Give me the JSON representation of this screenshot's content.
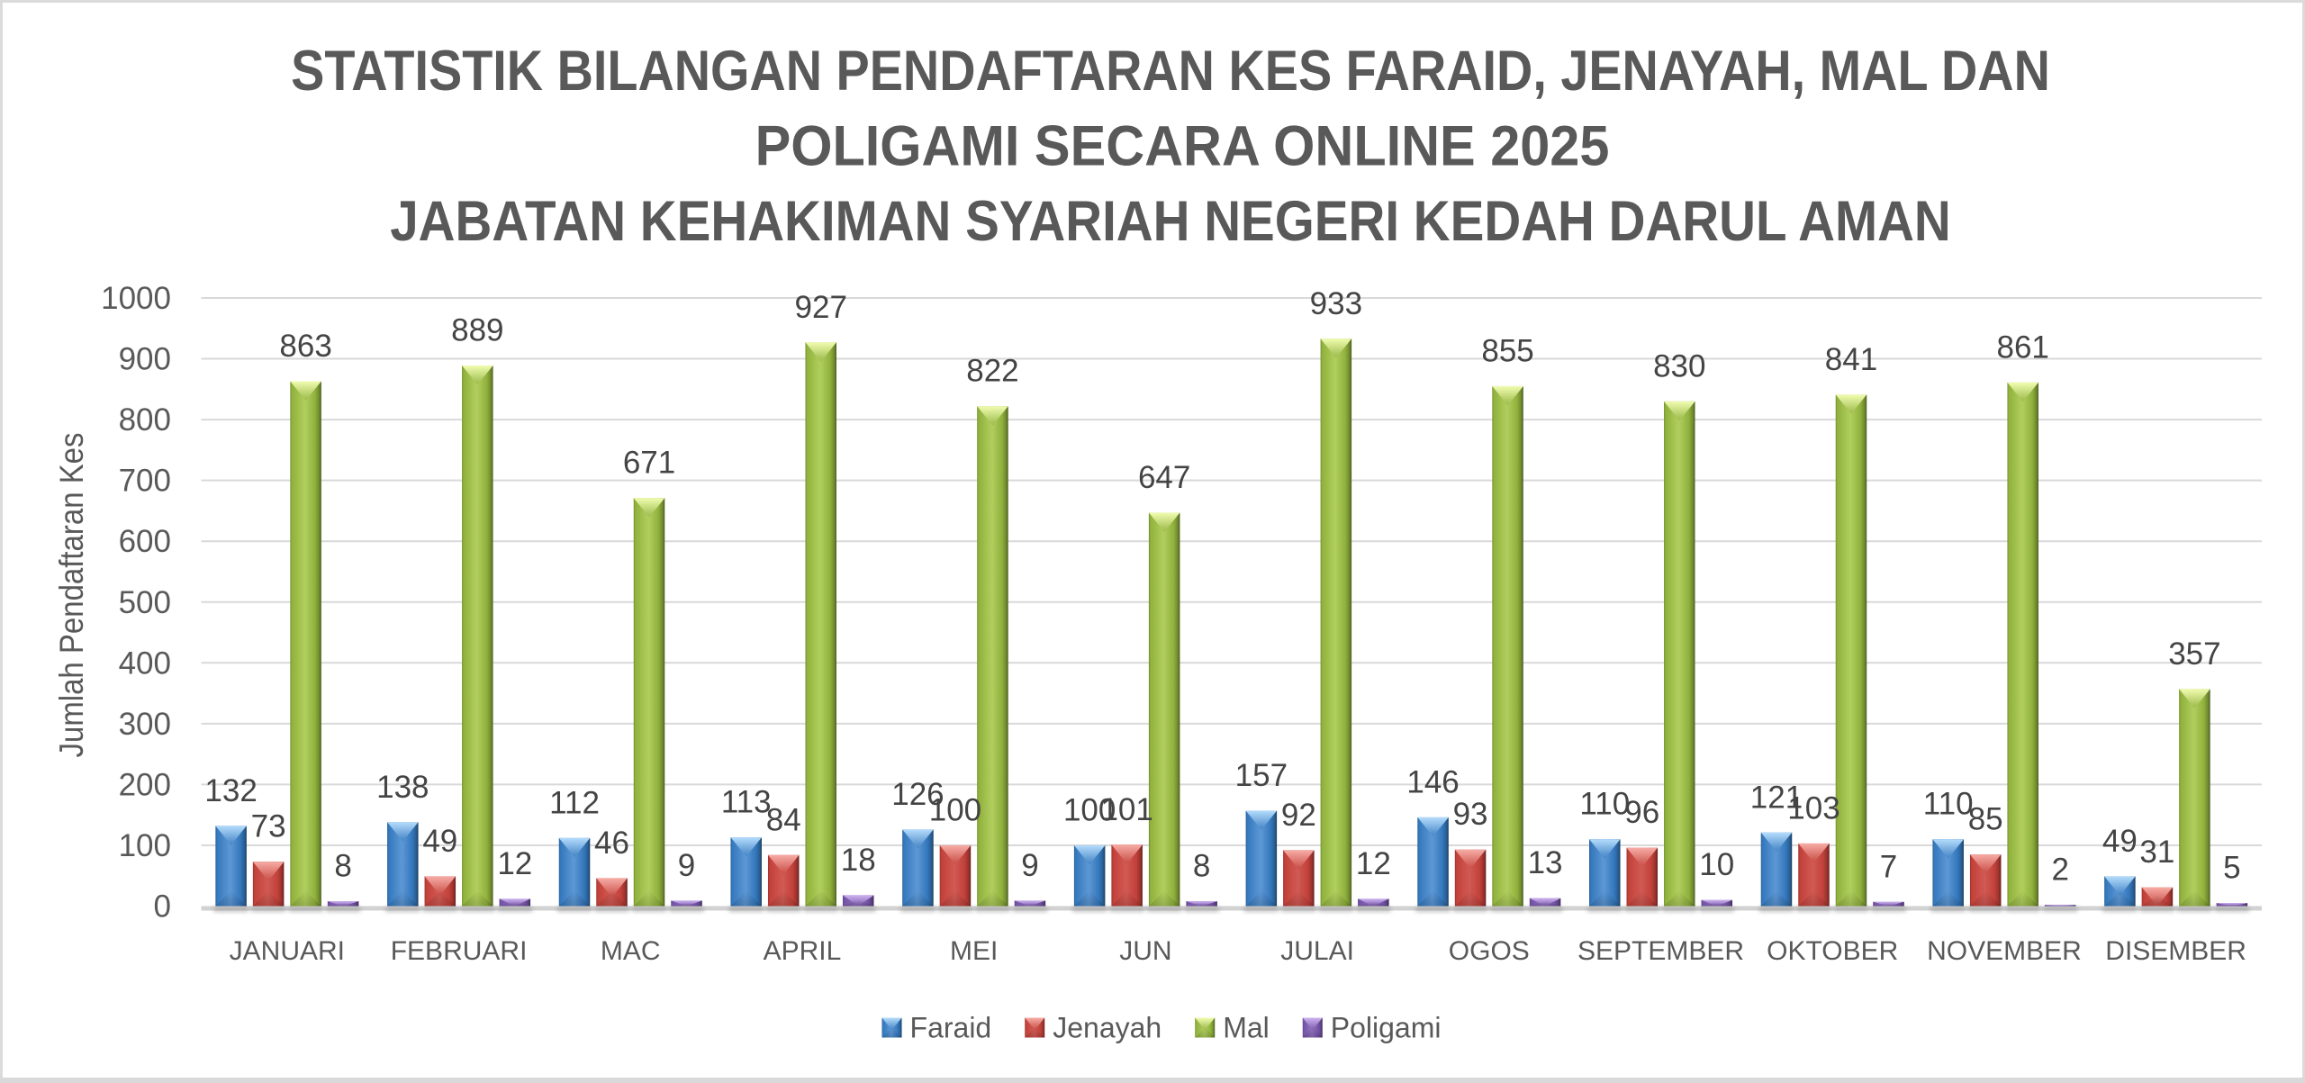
{
  "page": {
    "background": "#FFFFFF",
    "frame_color": "#DBDBDB",
    "bottom_bar_color": "#D9D9D9"
  },
  "chart_data": {
    "type": "bar",
    "title": "STATISTIK BILANGAN PENDAFTARAN KES FARAID, JENAYAH, MAL DAN POLIGAMI SECARA ONLINE 2025 JABATAN KEHAKIMAN SYARIAH NEGERI KEDAH DARUL AMAN",
    "title_lines": [
      "STATISTIK BILANGAN PENDAFTARAN KES FARAID, JENAYAH, MAL DAN",
      "POLIGAMI SECARA ONLINE 2025",
      "JABATAN KEHAKIMAN SYARIAH NEGERI KEDAH DARUL AMAN"
    ],
    "xlabel": "",
    "ylabel": "Jumlah Pendaftaran Kes",
    "ylim": [
      0,
      1000
    ],
    "ytick_step": 100,
    "yticks": [
      0,
      100,
      200,
      300,
      400,
      500,
      600,
      700,
      800,
      900,
      1000
    ],
    "grid": true,
    "legend_position": "bottom",
    "colors": {
      "gridline": "#D9D9D9",
      "axis_baseline": "#D2D2D2",
      "tick_text": "#595959",
      "category_text": "#595959",
      "value_label_text": "#444444",
      "title_text": "#595959",
      "legend_text": "#595959"
    },
    "categories": [
      "JANUARI",
      "FEBRUARI",
      "MAC",
      "APRIL",
      "MEI",
      "JUN",
      "JULAI",
      "OGOS",
      "SEPTEMBER",
      "OKTOBER",
      "NOVEMBER",
      "DISEMBER"
    ],
    "series": [
      {
        "name": "Faraid",
        "color": "#3478BD",
        "highlight": "#B4DCFC",
        "body_light": "#7FB2E8",
        "values": [
          132,
          138,
          112,
          113,
          126,
          100,
          157,
          146,
          110,
          121,
          110,
          49
        ]
      },
      {
        "name": "Jenayah",
        "color": "#C2403A",
        "highlight": "#F6ACA5",
        "body_light": "#DE7069",
        "values": [
          73,
          49,
          46,
          84,
          100,
          101,
          92,
          93,
          96,
          103,
          85,
          31
        ]
      },
      {
        "name": "Mal",
        "color": "#90B13C",
        "highlight": "#F0FCB0",
        "body_light": "#CBE77A",
        "values": [
          863,
          889,
          671,
          927,
          822,
          647,
          933,
          855,
          830,
          841,
          861,
          357
        ]
      },
      {
        "name": "Poligami",
        "color": "#7453A6",
        "highlight": "#CDB2F0",
        "body_light": "#A98BD6",
        "values": [
          8,
          12,
          9,
          18,
          9,
          8,
          12,
          13,
          10,
          7,
          2,
          5
        ]
      }
    ]
  }
}
